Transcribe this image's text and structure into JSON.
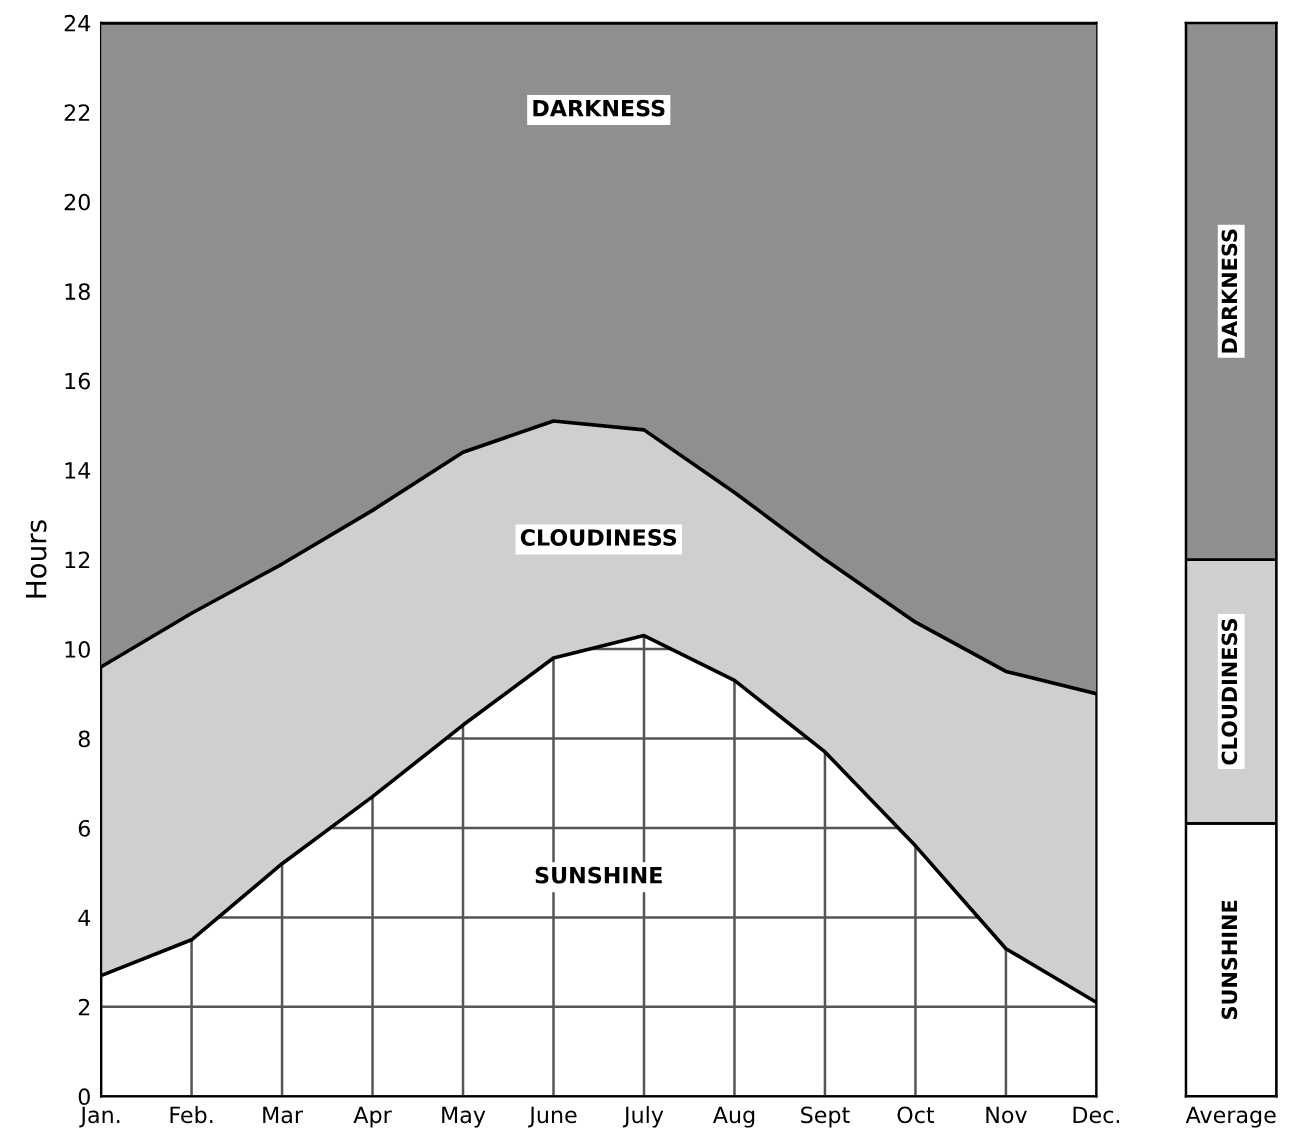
{
  "chart_data": [
    {
      "type": "area",
      "stacked": true,
      "ylabel": "Hours",
      "categories": [
        "Jan.",
        "Feb.",
        "Mar",
        "Apr",
        "May",
        "June",
        "July",
        "Aug",
        "Sept",
        "Oct",
        "Nov",
        "Dec."
      ],
      "ylim": [
        0,
        24
      ],
      "yticks": [
        0,
        2,
        4,
        6,
        8,
        10,
        12,
        14,
        16,
        18,
        20,
        22,
        24
      ],
      "grid": true,
      "legend": false,
      "series": [
        {
          "name": "SUNSHINE",
          "color": "#ffffff",
          "values": [
            2.7,
            3.5,
            5.2,
            6.7,
            8.3,
            9.8,
            10.3,
            9.3,
            7.7,
            5.6,
            3.3,
            2.1
          ]
        },
        {
          "name": "CLOUDINESS",
          "color": "#cfcfcf",
          "values": [
            6.9,
            7.3,
            6.7,
            6.4,
            6.1,
            5.3,
            4.6,
            4.2,
            4.3,
            5.0,
            6.2,
            6.9
          ]
        },
        {
          "name": "DARKNESS",
          "color": "#8f8f8f",
          "values": [
            14.4,
            13.2,
            12.1,
            10.9,
            9.6,
            8.9,
            9.1,
            10.5,
            12.0,
            13.4,
            14.5,
            15.0
          ]
        }
      ]
    },
    {
      "type": "bar",
      "stacked": true,
      "categories": [
        "Average"
      ],
      "ylim": [
        0,
        24
      ],
      "yticks": [
        0,
        2,
        4,
        6,
        8,
        10,
        12,
        14,
        16,
        18,
        20,
        22,
        24
      ],
      "tick_labels": "x",
      "legend": false,
      "series": [
        {
          "name": "SUNSHINE",
          "color": "#ffffff",
          "values": [
            6.1
          ]
        },
        {
          "name": "CLOUDINESS",
          "color": "#cfcfcf",
          "values": [
            5.9
          ]
        },
        {
          "name": "DARKNESS",
          "color": "#8f8f8f",
          "values": [
            12.0
          ]
        }
      ]
    }
  ]
}
